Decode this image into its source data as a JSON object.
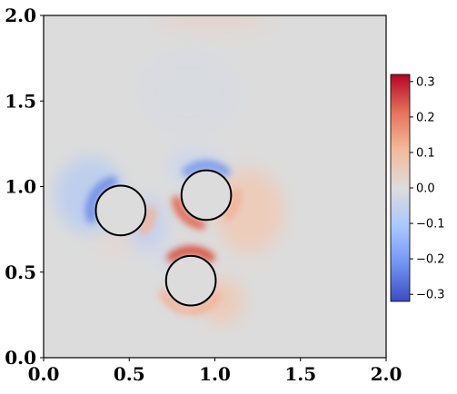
{
  "chart_data": {
    "type": "heatmap",
    "title": "",
    "xlabel": "",
    "ylabel": "",
    "xlim": [
      0.0,
      2.0
    ],
    "ylim": [
      0.0,
      2.0
    ],
    "x_ticks": [
      "0.0",
      "0.5",
      "1.0",
      "1.5",
      "2.0"
    ],
    "y_ticks": [
      "0.0",
      "0.5",
      "1.0",
      "1.5",
      "2.0"
    ],
    "colormap": "coolwarm",
    "colors": {
      "low": "#3b4cc0",
      "mid": "#dddddd",
      "high": "#b40426"
    },
    "colorbar": {
      "range": [
        -0.32,
        0.32
      ],
      "ticks": [
        "0.3",
        "0.2",
        "0.1",
        "0.0",
        "−0.1",
        "−0.2",
        "−0.3"
      ],
      "tick_values": [
        0.3,
        0.2,
        0.1,
        0.0,
        -0.1,
        -0.2,
        -0.3
      ]
    },
    "circles": [
      {
        "cx": 0.45,
        "cy": 0.86,
        "r": 0.145
      },
      {
        "cx": 0.95,
        "cy": 0.95,
        "r": 0.145
      },
      {
        "cx": 0.86,
        "cy": 0.45,
        "r": 0.145
      }
    ]
  }
}
